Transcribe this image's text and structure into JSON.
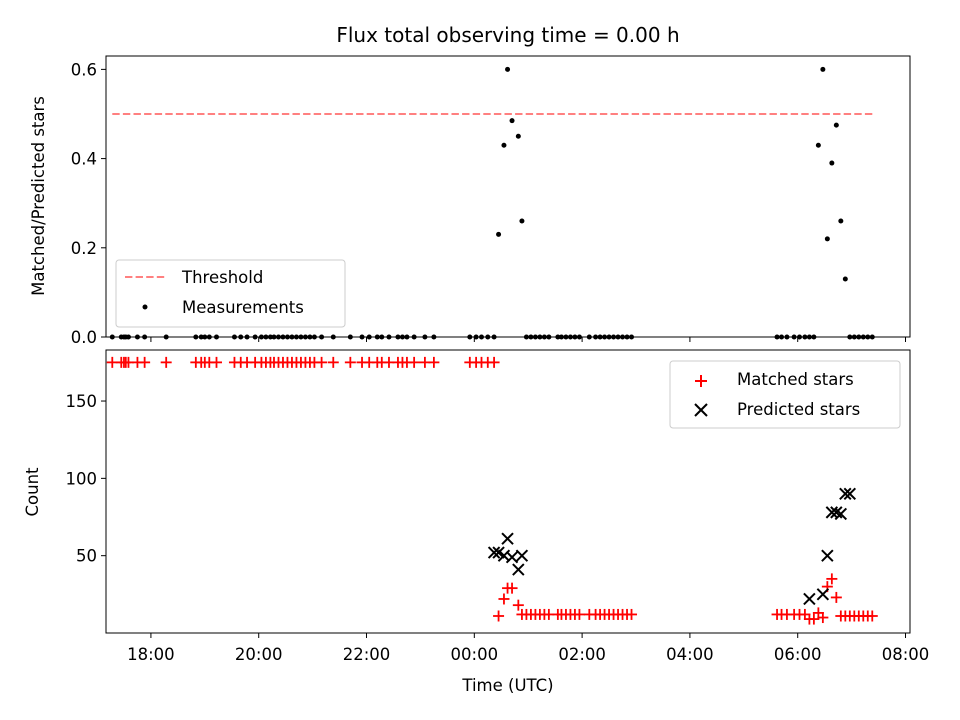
{
  "chart_data": [
    {
      "type": "scatter",
      "panel": "top",
      "title": "Flux total observing time = 0.00 h",
      "ylabel": "Matched/Predicted stars",
      "xlim": [
        "17:10",
        "08:05"
      ],
      "ylim": [
        0,
        0.63
      ],
      "yticks": [
        0.0,
        0.2,
        0.4,
        0.6
      ],
      "ytick_labels": [
        "0.0",
        "0.2",
        "0.4",
        "0.6"
      ],
      "legend": {
        "placement": "lower-left",
        "entries": [
          "Threshold",
          "Measurements"
        ]
      },
      "threshold": {
        "name": "Threshold",
        "color": "#ff8080",
        "style": "dashed",
        "value": 0.5,
        "x_start": "17:17",
        "x_end": "07:25"
      },
      "measurements": {
        "name": "Measurements",
        "color": "#000000",
        "x": [
          "17:17",
          "17:27",
          "17:30",
          "17:32",
          "17:35",
          "17:45",
          "17:53",
          "18:17",
          "18:50",
          "18:56",
          "19:00",
          "19:05",
          "19:13",
          "19:33",
          "19:40",
          "19:47",
          "19:56",
          "20:03",
          "20:08",
          "20:13",
          "20:17",
          "20:22",
          "20:27",
          "20:32",
          "20:37",
          "20:42",
          "20:47",
          "20:52",
          "20:57",
          "21:02",
          "21:10",
          "21:23",
          "21:42",
          "21:55",
          "22:03",
          "22:12",
          "22:17",
          "22:25",
          "22:35",
          "22:40",
          "22:45",
          "22:53",
          "23:05",
          "23:15",
          "23:55",
          "00:02",
          "00:08",
          "00:15",
          "00:22",
          "00:27",
          "00:33",
          "00:37",
          "00:42",
          "00:49",
          "00:53",
          "00:58",
          "01:03",
          "01:08",
          "01:13",
          "01:18",
          "01:23",
          "01:33",
          "01:37",
          "01:42",
          "01:47",
          "01:52",
          "01:57",
          "02:08",
          "02:15",
          "02:20",
          "02:25",
          "02:30",
          "02:35",
          "02:40",
          "02:45",
          "02:50",
          "02:55",
          "05:37",
          "05:42",
          "05:48",
          "05:56",
          "06:02",
          "06:08",
          "06:13",
          "06:18",
          "06:23",
          "06:28",
          "06:33",
          "06:38",
          "06:43",
          "06:48",
          "06:53",
          "06:58",
          "07:03",
          "07:08",
          "07:13",
          "07:18",
          "07:23"
        ],
        "y": [
          0,
          0,
          0,
          0,
          0,
          0,
          0,
          0,
          0,
          0,
          0,
          0,
          0,
          0,
          0,
          0,
          0,
          0,
          0,
          0,
          0,
          0,
          0,
          0,
          0,
          0,
          0,
          0,
          0,
          0,
          0,
          0,
          0,
          0,
          0,
          0,
          0,
          0,
          0,
          0,
          0,
          0,
          0,
          0,
          0,
          0,
          0,
          0,
          0,
          0.23,
          0.43,
          0.6,
          0.485,
          0.45,
          0.26,
          0,
          0,
          0,
          0,
          0,
          0,
          0,
          0,
          0,
          0,
          0,
          0,
          0,
          0,
          0,
          0,
          0,
          0,
          0,
          0,
          0,
          0,
          0,
          0,
          0,
          0,
          0,
          0,
          0,
          0,
          0.43,
          0.6,
          0.22,
          0.39,
          0.475,
          0.26,
          0.13,
          0,
          0,
          0,
          0,
          0,
          0
        ]
      }
    },
    {
      "type": "scatter",
      "panel": "bottom",
      "xlabel": "Time (UTC)",
      "ylabel": "Count",
      "xlim": [
        "17:10",
        "08:05"
      ],
      "xtick_labels": [
        "18:00",
        "20:00",
        "22:00",
        "00:00",
        "02:00",
        "04:00",
        "06:00",
        "08:00"
      ],
      "ylim": [
        0,
        183
      ],
      "yticks": [
        50,
        100,
        150
      ],
      "ytick_labels": [
        "50",
        "100",
        "150"
      ],
      "legend": {
        "placement": "top-right",
        "entries": [
          "Matched stars",
          "Predicted stars"
        ]
      },
      "matched": {
        "name": "Matched stars",
        "color": "#ff0000",
        "marker": "+",
        "x": [
          "17:17",
          "17:27",
          "17:30",
          "17:32",
          "17:35",
          "17:45",
          "17:53",
          "18:17",
          "18:50",
          "18:56",
          "19:00",
          "19:05",
          "19:13",
          "19:33",
          "19:40",
          "19:47",
          "19:56",
          "20:03",
          "20:08",
          "20:13",
          "20:17",
          "20:22",
          "20:27",
          "20:32",
          "20:37",
          "20:42",
          "20:47",
          "20:52",
          "20:57",
          "21:02",
          "21:10",
          "21:23",
          "21:42",
          "21:55",
          "22:03",
          "22:12",
          "22:17",
          "22:25",
          "22:35",
          "22:40",
          "22:45",
          "22:53",
          "23:05",
          "23:15",
          "23:55",
          "00:02",
          "00:08",
          "00:15",
          "00:22",
          "00:27",
          "00:33",
          "00:37",
          "00:42",
          "00:49",
          "00:53",
          "00:58",
          "01:03",
          "01:08",
          "01:13",
          "01:18",
          "01:23",
          "01:33",
          "01:37",
          "01:42",
          "01:47",
          "01:52",
          "01:57",
          "02:08",
          "02:15",
          "02:20",
          "02:25",
          "02:30",
          "02:35",
          "02:40",
          "02:45",
          "02:50",
          "02:55",
          "05:37",
          "05:42",
          "05:48",
          "05:56",
          "06:02",
          "06:08",
          "06:13",
          "06:18",
          "06:23",
          "06:28",
          "06:33",
          "06:38",
          "06:43",
          "06:48",
          "06:53",
          "06:58",
          "07:03",
          "07:08",
          "07:13",
          "07:18",
          "07:23"
        ],
        "y": [
          175,
          175,
          175,
          175,
          175,
          175,
          175,
          175,
          175,
          175,
          175,
          175,
          175,
          175,
          175,
          175,
          175,
          175,
          175,
          175,
          175,
          175,
          175,
          175,
          175,
          175,
          175,
          175,
          175,
          175,
          175,
          175,
          175,
          175,
          175,
          175,
          175,
          175,
          175,
          175,
          175,
          175,
          175,
          175,
          175,
          175,
          175,
          175,
          175,
          11,
          22,
          29,
          29,
          18,
          12,
          12,
          12,
          12,
          12,
          12,
          12,
          12,
          12,
          12,
          12,
          12,
          12,
          12,
          12,
          12,
          12,
          12,
          12,
          12,
          12,
          12,
          12,
          12,
          12,
          12,
          12,
          12,
          12,
          9,
          9,
          13,
          10,
          30,
          35,
          23,
          11,
          11,
          11,
          11,
          11,
          11,
          11,
          11
        ]
      },
      "predicted": {
        "name": "Predicted stars",
        "color": "#000000",
        "marker": "x",
        "x": [
          "00:22",
          "00:27",
          "00:33",
          "00:37",
          "00:42",
          "00:49",
          "00:53",
          "06:13",
          "06:28",
          "06:33",
          "06:38",
          "06:43",
          "06:48",
          "06:53",
          "06:58"
        ],
        "y": [
          52,
          52,
          50,
          61,
          49,
          41,
          50,
          22,
          25,
          50,
          78,
          78,
          77,
          90,
          90
        ]
      }
    }
  ]
}
